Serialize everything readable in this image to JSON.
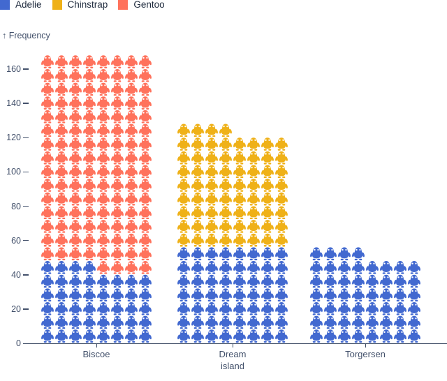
{
  "y_axis": {
    "title": "↑ Frequency"
  },
  "chart_data": {
    "type": "pictogram",
    "icon": "penguin",
    "unit_per_icon": 1,
    "icons_per_row": 8,
    "fill_order": "bottom-up, left-to-right, partial top row left-aligned",
    "categories": [
      "Biscoe",
      "Dream island",
      "Torgersen"
    ],
    "series": [
      {
        "name": "Adelie",
        "color": "#4269d0",
        "values": [
          44,
          56,
          52
        ]
      },
      {
        "name": "Chinstrap",
        "color": "#efb118",
        "values": [
          0,
          68,
          0
        ]
      },
      {
        "name": "Gentoo",
        "color": "#ff725c",
        "values": [
          124,
          0,
          0
        ]
      }
    ],
    "totals": [
      168,
      124,
      52
    ],
    "title": "",
    "xlabel": "",
    "ylabel": "Frequency",
    "yticks": [
      0,
      20,
      40,
      60,
      80,
      100,
      120,
      140,
      160
    ],
    "ylim": [
      0,
      168
    ],
    "grid": false,
    "legend_position": "top-left"
  },
  "colors": {
    "adelie": "#4269d0",
    "chinstrap": "#efb118",
    "gentoo": "#ff725c",
    "legend_text": "#1e2a3d",
    "axis_text": "#43516b",
    "axis_line": "#3b4a63",
    "background": "#ffffff"
  }
}
